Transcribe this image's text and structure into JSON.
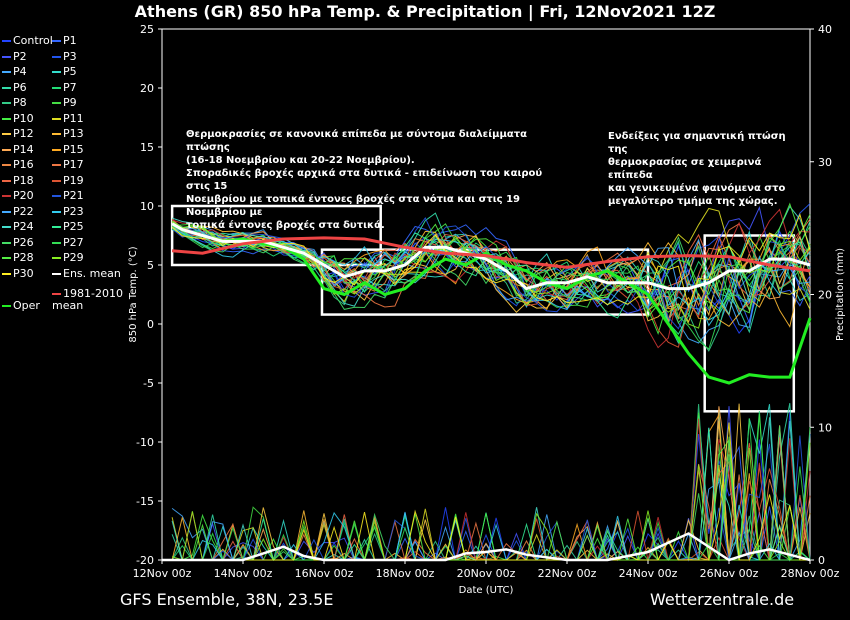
{
  "title": "Athens  (GR)  850 hPa Temp. & Precipitation | Fri, 12Nov2021 12Z",
  "footer_left": "GFS Ensemble, 38N, 23.5E",
  "footer_right": "Wetterzentrale.de",
  "annotations": [
    "Θερμοκρασίες σε κανονικά επίπεδα με σύντομα διαλείμματα πτώσης\n(16-18 Νοεμβρίου και 20-22 Νοεμβρίου).\nΣποραδικές βροχές αρχικά στα δυτικά - επιδείνωση του καιρού στις 15\nΝοεμβρίου με τοπικά έντονες βροχές στα νότια και στις 19 Νοεμβρίου με\nτοπικά έντονες βροχές στα δυτικά.",
    "Ενδείξεις για σημαντική πτώση της\nθερμοκρασίας σε χειμερινά επίπεδα\nκαι γενικευμένα φαινόμενα στο\nμεγαλύτερο τμήμα της χώρας."
  ],
  "chart_data": {
    "type": "line",
    "xlabel": "Date (UTC)",
    "ylabel": "850 hPa Temp. (°C)",
    "y2label": "Precipitation (mm)",
    "ylim": [
      -20,
      25
    ],
    "y2lim": [
      0,
      40
    ],
    "yticks": [
      25,
      20,
      15,
      10,
      5,
      0,
      -5,
      -10,
      -15,
      -20
    ],
    "y2ticks": [
      40,
      30,
      20,
      10,
      0
    ],
    "xticks": [
      "12Nov 00z",
      "14Nov 00z",
      "16Nov 00z",
      "18Nov 00z",
      "20Nov 00z",
      "22Nov 00z",
      "24Nov 00z",
      "26Nov 00z",
      "28Nov 00z"
    ],
    "xlim_days": [
      0,
      16
    ],
    "series": [
      {
        "name": "Oper",
        "color": "#22ee22",
        "x": [
          0.25,
          0.5,
          1,
          1.5,
          2,
          2.5,
          3,
          3.5,
          4,
          4.5,
          5,
          5.5,
          6,
          6.5,
          7,
          7.5,
          8,
          8.5,
          9,
          9.5,
          10,
          10.5,
          11,
          11.5,
          12,
          12.5,
          13,
          13.5,
          14,
          14.5,
          15,
          15.5,
          16
        ],
        "values": [
          8.5,
          8,
          7.5,
          7,
          7.2,
          6.8,
          6.5,
          5.5,
          3,
          2.5,
          3.5,
          2.5,
          3,
          4.5,
          5.5,
          5,
          6,
          5,
          4.5,
          3.5,
          3,
          4,
          4.5,
          3.5,
          2.5,
          0,
          -2.5,
          -4.5,
          -5,
          -4.3,
          -4.5,
          -4.5,
          0.5
        ]
      },
      {
        "name": "Ens. mean",
        "color": "#ffffff",
        "x": [
          0.25,
          0.5,
          1,
          1.5,
          2,
          2.5,
          3,
          3.5,
          4,
          4.5,
          5,
          5.5,
          6,
          6.5,
          7,
          7.5,
          8,
          8.5,
          9,
          9.5,
          10,
          10.5,
          11,
          11.5,
          12,
          12.5,
          13,
          13.5,
          14,
          14.5,
          15,
          15.5,
          16
        ],
        "values": [
          8.5,
          8,
          7.5,
          7,
          7,
          7,
          6.5,
          6,
          5,
          4,
          4.5,
          4.5,
          5,
          6.5,
          6.5,
          6,
          5.5,
          4.5,
          3,
          3.5,
          3.5,
          4,
          3.5,
          3.5,
          3.5,
          3,
          3,
          3.5,
          4.5,
          4.5,
          5.5,
          5.5,
          5
        ]
      },
      {
        "name": "1981-2010 mean",
        "color": "#ee4444",
        "x": [
          0.25,
          1,
          2,
          3,
          4,
          5,
          6,
          7,
          8,
          9,
          10,
          11,
          12,
          13,
          14,
          15,
          16
        ],
        "values": [
          6.2,
          6,
          6.8,
          7.2,
          7.3,
          7.2,
          6.5,
          6,
          5.8,
          5.2,
          4.8,
          5.3,
          5.7,
          5.8,
          5.7,
          5,
          4.5
        ]
      }
    ],
    "precip_mean": {
      "name": "Ens. mean",
      "x": [
        0,
        2,
        2.5,
        3,
        3.5,
        4,
        6,
        7,
        7.5,
        8,
        8.5,
        9,
        10,
        10.5,
        11,
        11.5,
        12,
        13,
        14,
        14.5,
        15,
        15.5,
        16
      ],
      "values": [
        0,
        0,
        0.5,
        1,
        0.3,
        0,
        0,
        0,
        0.5,
        0.6,
        0.8,
        0.4,
        0,
        0,
        0,
        0.3,
        0.6,
        2,
        0,
        0.5,
        0.8,
        0.4,
        0
      ]
    },
    "legend": [
      {
        "label": "Control",
        "color": "#2244ff"
      },
      {
        "label": "P1",
        "color": "#3366ff"
      },
      {
        "label": "P2",
        "color": "#4455ff"
      },
      {
        "label": "P3",
        "color": "#2255ee"
      },
      {
        "label": "P4",
        "color": "#44aaff"
      },
      {
        "label": "P5",
        "color": "#33ddcc"
      },
      {
        "label": "P6",
        "color": "#33ddaa"
      },
      {
        "label": "P7",
        "color": "#22dd77"
      },
      {
        "label": "P8",
        "color": "#33cc88"
      },
      {
        "label": "P9",
        "color": "#44dd44"
      },
      {
        "label": "P10",
        "color": "#44ee44"
      },
      {
        "label": "P11",
        "color": "#dddd22"
      },
      {
        "label": "P12",
        "color": "#ffcc44"
      },
      {
        "label": "P13",
        "color": "#ffbb33"
      },
      {
        "label": "P14",
        "color": "#ffaa55"
      },
      {
        "label": "P15",
        "color": "#ffaa22"
      },
      {
        "label": "P16",
        "color": "#ee8844"
      },
      {
        "label": "P17",
        "color": "#ee7744"
      },
      {
        "label": "P18",
        "color": "#ee6644"
      },
      {
        "label": "P19",
        "color": "#dd5533"
      },
      {
        "label": "P20",
        "color": "#cc3333"
      },
      {
        "label": "P21",
        "color": "#2255dd"
      },
      {
        "label": "P22",
        "color": "#44aaff"
      },
      {
        "label": "P23",
        "color": "#33ccee"
      },
      {
        "label": "P24",
        "color": "#44ddcc"
      },
      {
        "label": "P25",
        "color": "#33ee99"
      },
      {
        "label": "P26",
        "color": "#44dd66"
      },
      {
        "label": "P27",
        "color": "#33dd55"
      },
      {
        "label": "P28",
        "color": "#55ee44"
      },
      {
        "label": "P29",
        "color": "#88ee22"
      },
      {
        "label": "P30",
        "color": "#ffee22"
      },
      {
        "label": "Ens. mean",
        "color": "#ffffff"
      },
      {
        "label": "Oper",
        "color": "#22ee22"
      },
      {
        "label": "1981-2010\nmean",
        "color": "#ee4444"
      }
    ]
  }
}
